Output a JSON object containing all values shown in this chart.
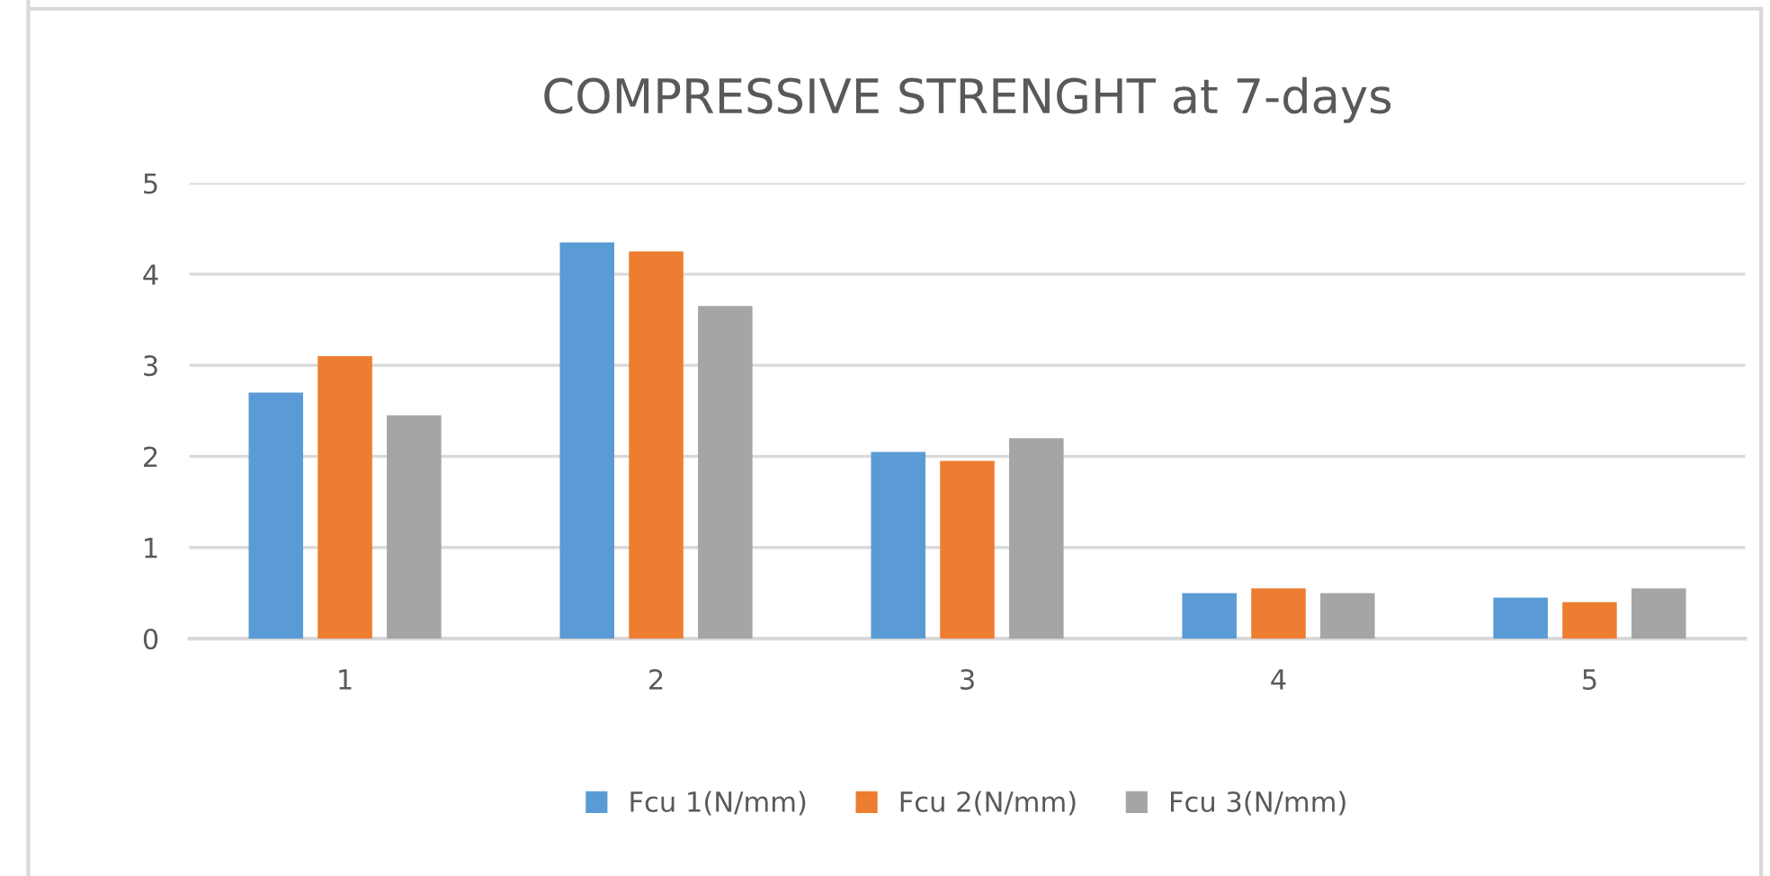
{
  "chart_data": {
    "type": "bar",
    "title": "COMPRESSIVE STRENGHT at 7-days",
    "categories": [
      "1",
      "2",
      "3",
      "4",
      "5"
    ],
    "series": [
      {
        "name": "Fcu 1(N/mm)",
        "color": "#5b9bd5",
        "values": [
          2.7,
          4.35,
          2.05,
          0.5,
          0.45
        ]
      },
      {
        "name": "Fcu 2(N/mm)",
        "color": "#ed7d31",
        "values": [
          3.1,
          4.25,
          1.95,
          0.55,
          0.4
        ]
      },
      {
        "name": "Fcu 3(N/mm)",
        "color": "#a5a5a5",
        "values": [
          2.45,
          3.65,
          2.2,
          0.5,
          0.55
        ]
      }
    ],
    "ylim": [
      0,
      5
    ],
    "yticks": [
      0,
      1,
      2,
      3,
      4,
      5
    ],
    "grid": "y",
    "legend": "bottom"
  }
}
